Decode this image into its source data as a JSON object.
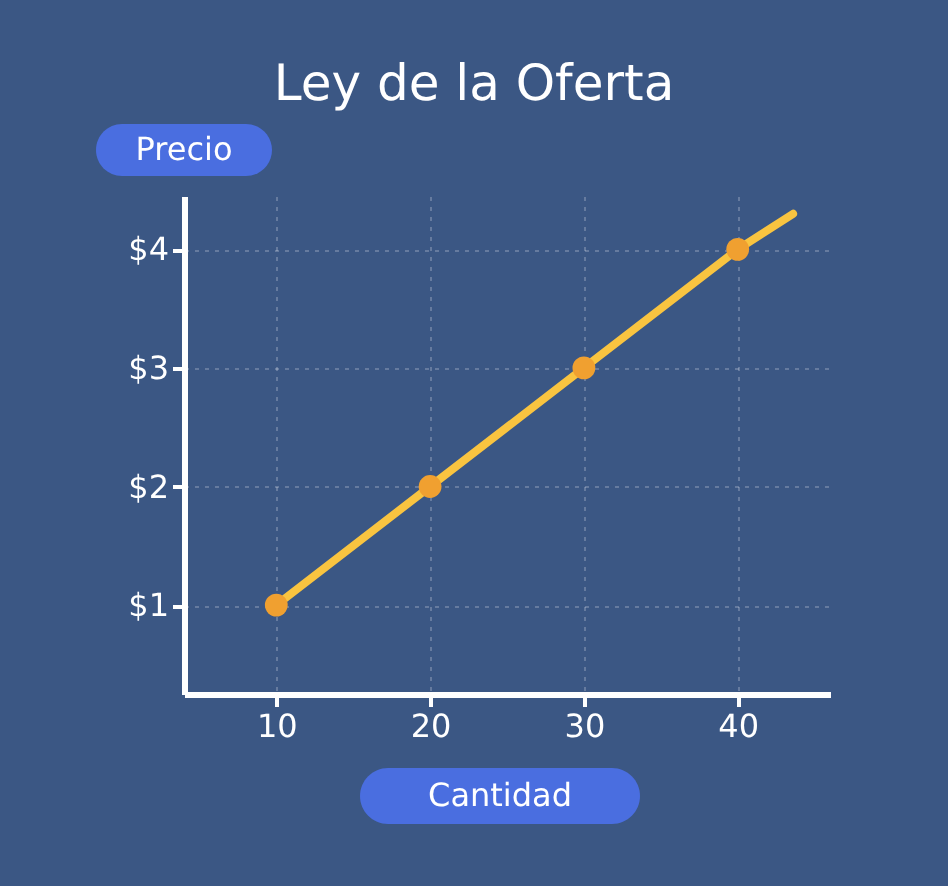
{
  "chart_data": {
    "type": "line",
    "title": "Ley de la Oferta",
    "xlabel": "Cantidad",
    "ylabel": "Precio",
    "series": [
      {
        "color": "#f9c440",
        "x": [
          10,
          20,
          30,
          40,
          43.6
        ],
        "values": [
          1,
          2,
          3,
          4,
          4.3
        ]
      },
      {
        "type": "scatter",
        "color": "#f0a030",
        "x": [
          10,
          20,
          30,
          40
        ],
        "values": [
          1,
          2,
          3,
          4
        ]
      }
    ],
    "xlim": [
      4,
      46
    ],
    "ylim": [
      0.25,
      4.45
    ],
    "xticks": [
      10,
      20,
      30,
      40
    ],
    "yticks": [
      {
        "value": 1,
        "label": "$1"
      },
      {
        "value": 2,
        "label": "$2"
      },
      {
        "value": 3,
        "label": "$3"
      },
      {
        "value": 4,
        "label": "$4"
      }
    ],
    "grid": true
  }
}
